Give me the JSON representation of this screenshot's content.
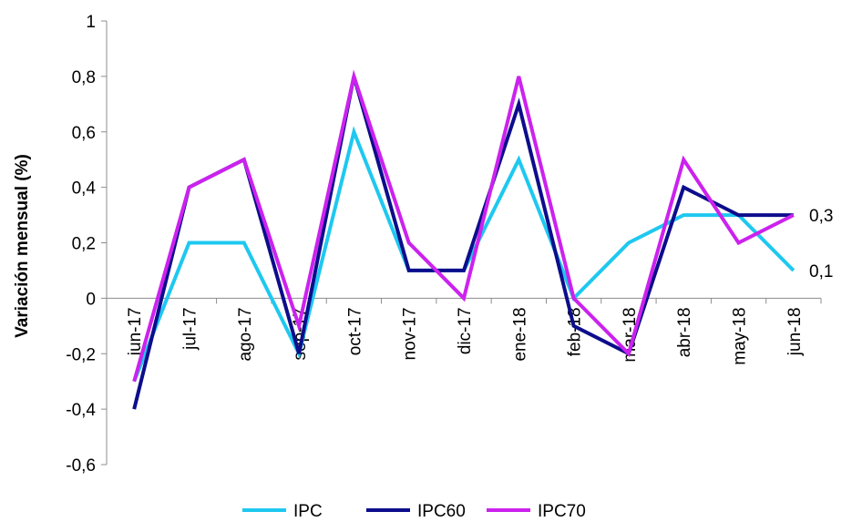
{
  "chart_data": {
    "type": "line",
    "ylabel": "Variación mensual (%)",
    "ylim": [
      -0.6,
      1
    ],
    "yticks": [
      -0.6,
      -0.4,
      -0.2,
      0,
      0.2,
      0.4,
      0.6,
      0.8,
      1
    ],
    "ytick_labels": [
      "-0,6",
      "-0,4",
      "-0,2",
      "0",
      "0,2",
      "0,4",
      "0,6",
      "0,8",
      "1"
    ],
    "categories": [
      "jun-17",
      "jul-17",
      "ago-17",
      "sep-17",
      "oct-17",
      "nov-17",
      "dic-17",
      "ene-18",
      "feb-18",
      "mar-18",
      "abr-18",
      "may-18",
      "jun-18"
    ],
    "grid": false,
    "legend_position": "bottom",
    "series": [
      {
        "name": "IPC",
        "color": "#1EC8F0",
        "values": [
          -0.3,
          0.2,
          0.2,
          -0.2,
          0.6,
          0.1,
          0.1,
          0.5,
          0.0,
          0.2,
          0.3,
          0.3,
          0.1
        ]
      },
      {
        "name": "IPC60",
        "color": "#0D0D8C",
        "values": [
          -0.4,
          0.4,
          0.5,
          -0.2,
          0.8,
          0.1,
          0.1,
          0.7,
          -0.1,
          -0.2,
          0.4,
          0.3,
          0.3
        ]
      },
      {
        "name": "IPC70",
        "color": "#CC22EE",
        "values": [
          -0.3,
          0.4,
          0.5,
          -0.1,
          0.8,
          0.2,
          0.0,
          0.8,
          0.0,
          -0.2,
          0.5,
          0.2,
          0.3
        ]
      }
    ],
    "end_labels": [
      {
        "text": "0,3",
        "value": 0.3
      },
      {
        "text": "0,1",
        "value": 0.1
      }
    ]
  }
}
